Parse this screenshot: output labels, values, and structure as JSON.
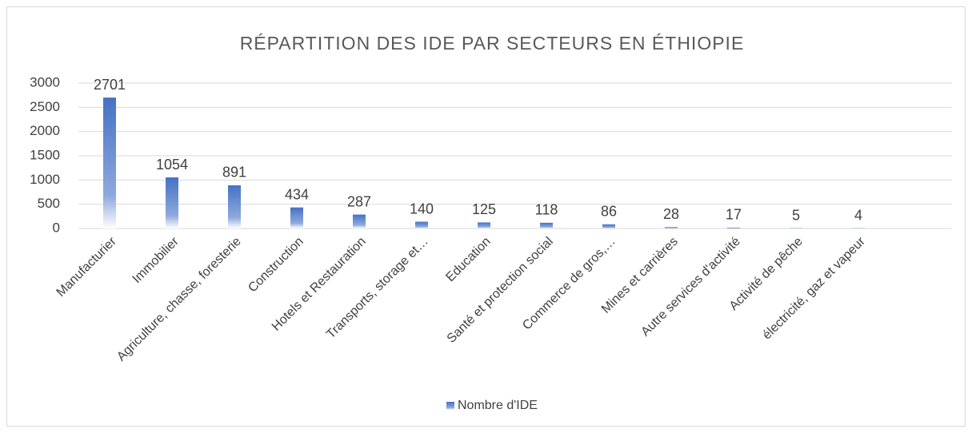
{
  "chart_data": {
    "type": "bar",
    "title": "RÉPARTITION DES IDE PAR SECTEURS EN ÉTHIOPIE",
    "categories": [
      "Manufacturier",
      "Immobilier",
      "Agriculture, chasse, foresterie",
      "Construction",
      "Hotels et Restauration",
      "Transports, storage et…",
      "Education",
      "Santé et protection social",
      "Commerce de gros,…",
      "Mines et carrières",
      "Autre services d'activité",
      "Activité de pêche",
      "électricité, gaz et vapeur"
    ],
    "series": [
      {
        "name": "Nombre d'IDE",
        "color": "#4472c4",
        "values": [
          2701,
          1054,
          891,
          434,
          287,
          140,
          125,
          118,
          86,
          28,
          17,
          5,
          4
        ]
      }
    ],
    "ylim": [
      0,
      3000
    ],
    "yticks": [
      0,
      500,
      1000,
      1500,
      2000,
      2500,
      3000
    ],
    "grid": true,
    "legend": "bottom"
  }
}
